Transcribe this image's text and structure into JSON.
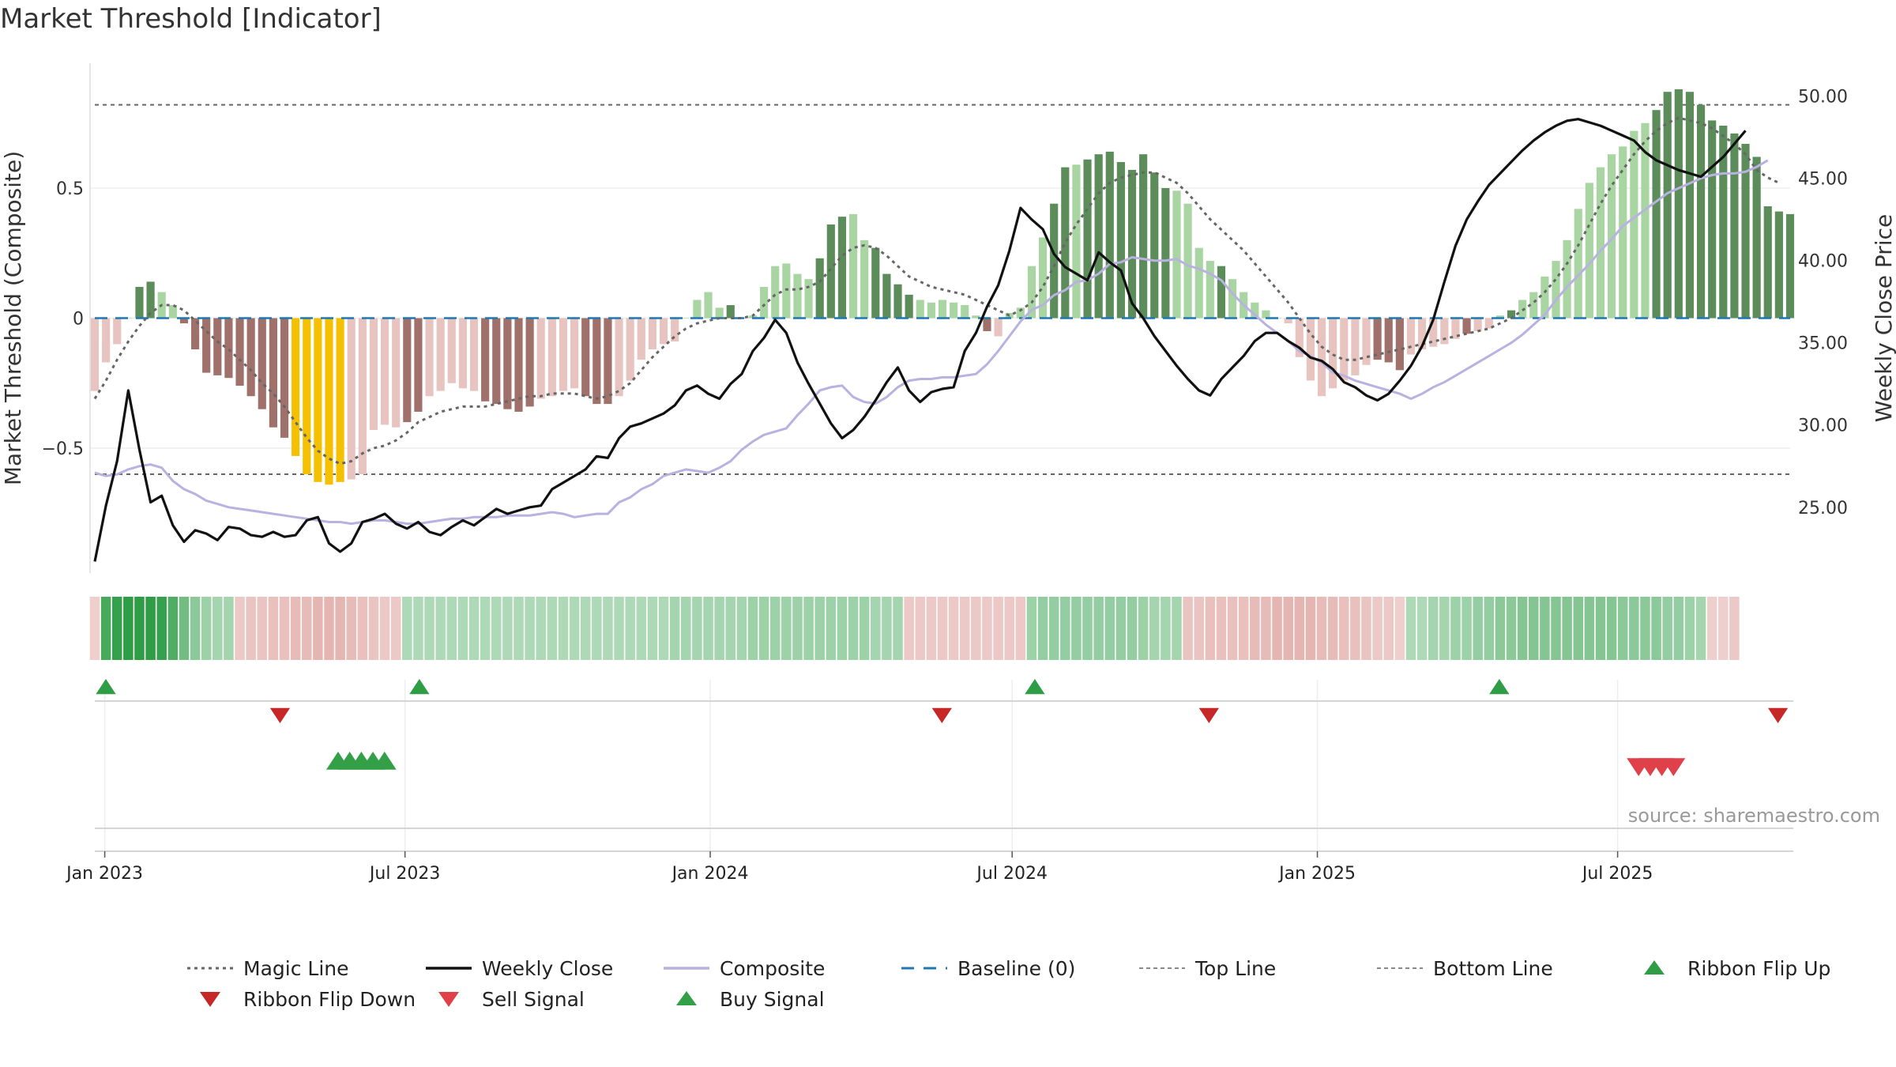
{
  "page_title": "Market Threshold [Indicator]",
  "source_note": "source: sharemaestro.com",
  "colors": {
    "bar_bull_strong": "#5b8c5a",
    "bar_bull_weak": "#a9d5a2",
    "bar_bear_strong": "#a0706b",
    "bar_bear_weak": "#e8c4c0",
    "bar_extreme": "#f5c000",
    "weekly_close": "#111111",
    "composite": "#b9b2e0",
    "magic_line": "#666666",
    "baseline": "#1f77b4",
    "threshold_lines": "#666666",
    "ribbon_flip_up": "#2e9d46",
    "ribbon_flip_down": "#c62828",
    "sell_signal": "#e0404a",
    "buy_signal": "#33a048"
  },
  "chart_data": {
    "type": "bar",
    "title": "Market Threshold [Indicator]",
    "x_axis": {
      "start": "2022-12-26",
      "end": "2025-10-13",
      "tick_labels": [
        "Jan 2023",
        "Jul 2023",
        "Jan 2024",
        "Jul 2024",
        "Jan 2025",
        "Jul 2025"
      ],
      "tick_dates": [
        "2023-01-01",
        "2023-07-01",
        "2024-01-01",
        "2024-07-01",
        "2025-01-01",
        "2025-07-01"
      ]
    },
    "y_left": {
      "label": "Market Threshold (Composite)",
      "range": [
        -0.98,
        0.98
      ],
      "ticks": [
        0.5,
        0,
        -0.5
      ],
      "tick_labels": [
        "0.5",
        "0",
        "−0.5"
      ]
    },
    "y_right": {
      "label": "Weekly Close Price",
      "range": [
        21.0,
        52.0
      ],
      "ticks": [
        50,
        45,
        40,
        35,
        30,
        25
      ],
      "tick_labels": [
        "50.00",
        "45.00",
        "40.00",
        "35.00",
        "30.00",
        "25.00"
      ]
    },
    "reference_lines": {
      "top_line": 0.82,
      "bottom_line": -0.6,
      "baseline": 0
    },
    "bar_categories": [
      "weak",
      "weak",
      "weak",
      "weak",
      "strong",
      "strong",
      "weak",
      "weak",
      "strong",
      "strong",
      "strong",
      "strong",
      "strong",
      "strong",
      "strong",
      "strong",
      "strong",
      "strong",
      "extreme",
      "extreme",
      "extreme",
      "extreme",
      "extreme",
      "weak",
      "weak",
      "weak",
      "weak",
      "weak",
      "strong",
      "strong",
      "weak",
      "weak",
      "weak",
      "weak",
      "weak",
      "strong",
      "strong",
      "strong",
      "strong",
      "strong",
      "weak",
      "weak",
      "weak",
      "weak",
      "strong",
      "strong",
      "strong",
      "weak",
      "weak",
      "weak",
      "weak",
      "weak",
      "weak",
      "weak",
      "weak",
      "weak",
      "weak",
      "strong",
      "weak",
      "weak",
      "weak",
      "weak",
      "weak",
      "weak",
      "weak",
      "strong",
      "strong",
      "strong",
      "weak",
      "weak",
      "strong",
      "strong",
      "strong",
      "strong",
      "weak",
      "weak",
      "weak",
      "weak",
      "weak",
      "weak",
      "strong",
      "weak",
      "weak",
      "weak",
      "weak",
      "weak",
      "strong",
      "strong",
      "weak",
      "strong",
      "strong",
      "strong",
      "strong",
      "strong",
      "strong",
      "strong",
      "strong",
      "weak",
      "weak",
      "weak",
      "weak",
      "strong",
      "weak",
      "weak",
      "weak",
      "weak",
      "weak",
      "weak",
      "weak",
      "weak",
      "weak",
      "weak",
      "weak",
      "weak",
      "weak",
      "strong",
      "strong",
      "strong",
      "weak",
      "weak",
      "weak",
      "weak",
      "weak",
      "strong",
      "weak",
      "weak",
      "weak",
      "strong",
      "weak",
      "weak",
      "weak",
      "weak",
      "weak",
      "weak",
      "weak",
      "weak",
      "weak",
      "weak",
      "weak",
      "weak",
      "strong",
      "strong",
      "strong",
      "strong",
      "strong",
      "strong",
      "strong",
      "strong",
      "strong",
      "strong",
      "strong",
      "strong",
      "strong",
      "strong",
      "extreme",
      "extreme",
      "extreme",
      "extreme",
      "weak",
      "weak",
      "weak",
      "weak",
      "weak",
      "weak",
      "weak",
      "weak",
      "weak",
      "strong"
    ],
    "composite_bars": [
      -0.28,
      -0.17,
      -0.1,
      0.0,
      0.12,
      0.14,
      0.1,
      0.05,
      -0.02,
      -0.12,
      -0.21,
      -0.22,
      -0.23,
      -0.26,
      -0.3,
      -0.35,
      -0.42,
      -0.46,
      -0.53,
      -0.6,
      -0.63,
      -0.64,
      -0.63,
      -0.62,
      -0.6,
      -0.43,
      -0.41,
      -0.42,
      -0.4,
      -0.36,
      -0.3,
      -0.28,
      -0.25,
      -0.27,
      -0.28,
      -0.32,
      -0.33,
      -0.35,
      -0.36,
      -0.34,
      -0.31,
      -0.3,
      -0.28,
      -0.27,
      -0.3,
      -0.33,
      -0.33,
      -0.3,
      -0.24,
      -0.16,
      -0.12,
      -0.1,
      -0.09,
      0.0,
      0.07,
      0.1,
      0.04,
      0.05,
      0.0,
      0.01,
      0.12,
      0.2,
      0.21,
      0.17,
      0.15,
      0.23,
      0.36,
      0.39,
      0.4,
      0.3,
      0.27,
      0.17,
      0.13,
      0.09,
      0.07,
      0.06,
      0.07,
      0.06,
      0.05,
      0.01,
      -0.05,
      -0.07,
      0.02,
      0.04,
      0.2,
      0.31,
      0.44,
      0.58,
      0.59,
      0.61,
      0.63,
      0.64,
      0.6,
      0.57,
      0.63,
      0.56,
      0.5,
      0.49,
      0.44,
      0.27,
      0.22,
      0.2,
      0.15,
      0.1,
      0.06,
      0.03,
      0.0,
      -0.02,
      -0.15,
      -0.24,
      -0.3,
      -0.27,
      -0.24,
      -0.22,
      -0.18,
      -0.16,
      -0.17,
      -0.2,
      -0.14,
      -0.12,
      -0.11,
      -0.1,
      -0.08,
      -0.06,
      -0.05,
      -0.04,
      0.01,
      0.03,
      0.07,
      0.1,
      0.16,
      0.22,
      0.3,
      0.42,
      0.52,
      0.58,
      0.63,
      0.66,
      0.72,
      0.75,
      0.8,
      0.87,
      0.88,
      0.87,
      0.82,
      0.76,
      0.74,
      0.71,
      0.67,
      0.62,
      0.43,
      0.41,
      0.4
    ],
    "series": [
      {
        "name": "Magic Line",
        "type": "line",
        "style": "dotted",
        "axis": "left",
        "values": [
          -0.31,
          -0.24,
          -0.16,
          -0.09,
          -0.03,
          0.02,
          0.05,
          0.05,
          0.03,
          -0.01,
          -0.05,
          -0.09,
          -0.12,
          -0.16,
          -0.2,
          -0.25,
          -0.29,
          -0.34,
          -0.4,
          -0.46,
          -0.51,
          -0.54,
          -0.56,
          -0.55,
          -0.52,
          -0.5,
          -0.49,
          -0.47,
          -0.44,
          -0.4,
          -0.38,
          -0.36,
          -0.35,
          -0.34,
          -0.34,
          -0.34,
          -0.33,
          -0.32,
          -0.31,
          -0.3,
          -0.3,
          -0.29,
          -0.29,
          -0.29,
          -0.3,
          -0.31,
          -0.3,
          -0.28,
          -0.25,
          -0.2,
          -0.15,
          -0.11,
          -0.07,
          -0.04,
          -0.02,
          -0.01,
          0.0,
          0.0,
          0.0,
          0.01,
          0.05,
          0.09,
          0.11,
          0.11,
          0.12,
          0.14,
          0.19,
          0.24,
          0.27,
          0.28,
          0.27,
          0.24,
          0.2,
          0.16,
          0.14,
          0.12,
          0.11,
          0.1,
          0.09,
          0.07,
          0.05,
          0.03,
          0.01,
          0.03,
          0.06,
          0.12,
          0.2,
          0.29,
          0.36,
          0.42,
          0.48,
          0.52,
          0.54,
          0.55,
          0.56,
          0.56,
          0.54,
          0.52,
          0.48,
          0.43,
          0.38,
          0.34,
          0.3,
          0.26,
          0.21,
          0.16,
          0.11,
          0.06,
          0.0,
          -0.06,
          -0.11,
          -0.14,
          -0.16,
          -0.16,
          -0.15,
          -0.14,
          -0.13,
          -0.12,
          -0.11,
          -0.1,
          -0.09,
          -0.08,
          -0.07,
          -0.06,
          -0.05,
          -0.04,
          -0.02,
          0.0,
          0.03,
          0.06,
          0.1,
          0.15,
          0.21,
          0.28,
          0.36,
          0.44,
          0.51,
          0.57,
          0.63,
          0.68,
          0.72,
          0.75,
          0.77,
          0.76,
          0.75,
          0.73,
          0.7,
          0.67,
          0.63,
          0.57,
          0.54,
          0.52
        ]
      },
      {
        "name": "Weekly Close",
        "type": "line",
        "style": "solid",
        "axis": "right",
        "values": [
          21.7,
          25.1,
          27.8,
          32.1,
          28.5,
          25.3,
          25.7,
          23.9,
          22.9,
          23.6,
          23.4,
          23.0,
          23.8,
          23.7,
          23.3,
          23.2,
          23.5,
          23.2,
          23.3,
          24.2,
          24.4,
          22.8,
          22.3,
          22.8,
          24.1,
          24.3,
          24.6,
          24.0,
          23.7,
          24.1,
          23.5,
          23.3,
          23.8,
          24.2,
          23.9,
          24.4,
          24.9,
          24.6,
          24.8,
          25.0,
          25.1,
          26.1,
          26.5,
          26.9,
          27.3,
          28.1,
          28.0,
          29.2,
          29.9,
          30.1,
          30.4,
          30.7,
          31.2,
          32.1,
          32.4,
          31.9,
          31.6,
          32.5,
          33.1,
          34.5,
          35.3,
          36.4,
          35.6,
          33.8,
          32.5,
          31.3,
          30.1,
          29.2,
          29.7,
          30.5,
          31.5,
          32.6,
          33.5,
          32.1,
          31.4,
          32.0,
          32.2,
          32.3,
          34.5,
          35.6,
          37.2,
          38.5,
          40.6,
          43.2,
          42.5,
          41.9,
          40.4,
          39.6,
          39.2,
          38.8,
          40.5,
          39.9,
          39.4,
          37.4,
          36.5,
          35.4,
          34.5,
          33.6,
          32.8,
          32.1,
          31.8,
          32.8,
          33.5,
          34.2,
          35.1,
          35.6,
          35.6,
          35.1,
          34.7,
          34.1,
          33.9,
          33.4,
          32.6,
          32.3,
          31.8,
          31.5,
          31.9,
          32.7,
          33.6,
          34.8,
          36.4,
          38.7,
          40.9,
          42.5,
          43.6,
          44.6,
          45.3,
          46.0,
          46.7,
          47.3,
          47.8,
          48.2,
          48.5,
          48.6,
          48.4,
          48.2,
          47.9,
          47.6,
          47.3,
          46.6,
          46.1,
          45.8,
          45.5,
          45.3,
          45.1,
          45.7,
          46.3,
          47.1,
          47.9
        ]
      },
      {
        "name": "Composite",
        "type": "line",
        "style": "solid",
        "axis": "right",
        "values": [
          27.1,
          26.9,
          27.0,
          27.3,
          27.5,
          27.6,
          27.4,
          26.6,
          26.1,
          25.8,
          25.4,
          25.2,
          25.0,
          24.9,
          24.8,
          24.7,
          24.6,
          24.5,
          24.4,
          24.3,
          24.2,
          24.1,
          24.1,
          24.0,
          24.1,
          24.2,
          24.2,
          24.1,
          24.0,
          24.0,
          24.1,
          24.2,
          24.3,
          24.3,
          24.4,
          24.4,
          24.4,
          24.5,
          24.5,
          24.5,
          24.6,
          24.7,
          24.6,
          24.4,
          24.5,
          24.6,
          24.6,
          25.3,
          25.6,
          26.1,
          26.4,
          26.9,
          27.1,
          27.3,
          27.2,
          27.1,
          27.4,
          27.8,
          28.5,
          29.0,
          29.4,
          29.6,
          29.8,
          30.6,
          31.3,
          32.1,
          32.3,
          32.4,
          31.7,
          31.4,
          31.3,
          31.7,
          32.3,
          32.7,
          32.8,
          32.8,
          32.9,
          32.9,
          33.0,
          33.1,
          33.7,
          34.5,
          35.4,
          36.3,
          37.0,
          37.3,
          37.9,
          38.2,
          38.7,
          38.8,
          39.2,
          39.8,
          39.9,
          40.2,
          40.1,
          40.0,
          40.0,
          40.1,
          39.7,
          39.5,
          39.2,
          38.8,
          38.0,
          37.3,
          36.7,
          36.1,
          35.6,
          35.1,
          34.5,
          34.2,
          33.8,
          33.2,
          33.0,
          32.7,
          32.5,
          32.3,
          32.1,
          31.9,
          31.6,
          31.9,
          32.3,
          32.6,
          33.0,
          33.4,
          33.8,
          34.2,
          34.6,
          35.0,
          35.5,
          36.1,
          36.7,
          37.6,
          38.4,
          39.1,
          39.8,
          40.6,
          41.3,
          42.1,
          42.6,
          43.1,
          43.6,
          44.1,
          44.4,
          44.7,
          45.0,
          45.2,
          45.3,
          45.3,
          45.4,
          45.7,
          46.1
        ]
      },
      {
        "name": "Baseline (0)",
        "type": "line",
        "style": "dashed",
        "axis": "left",
        "values": [
          0
        ]
      },
      {
        "name": "Top Line",
        "type": "line",
        "style": "dotted",
        "axis": "left",
        "values": [
          0.82
        ]
      },
      {
        "name": "Bottom Line",
        "type": "line",
        "style": "dotted",
        "axis": "left",
        "values": [
          -0.6
        ]
      }
    ],
    "ribbon": {
      "description_values": "signed strength per week, positive = green, negative = red",
      "values": [
        -0.2,
        0.85,
        0.95,
        1.0,
        1.0,
        1.0,
        0.95,
        0.8,
        0.6,
        0.45,
        0.35,
        0.3,
        0.3,
        -0.25,
        -0.3,
        -0.3,
        -0.35,
        -0.35,
        -0.4,
        -0.4,
        -0.45,
        -0.45,
        -0.45,
        -0.4,
        -0.35,
        -0.3,
        -0.25,
        -0.25,
        0.25,
        0.25,
        0.25,
        0.25,
        0.25,
        0.25,
        0.25,
        0.25,
        0.25,
        0.25,
        0.25,
        0.25,
        0.25,
        0.25,
        0.25,
        0.25,
        0.25,
        0.25,
        0.25,
        0.25,
        0.25,
        0.25,
        0.25,
        0.25,
        0.3,
        0.3,
        0.3,
        0.3,
        0.3,
        0.3,
        0.3,
        0.35,
        0.35,
        0.35,
        0.35,
        0.35,
        0.35,
        0.35,
        0.35,
        0.35,
        0.35,
        0.35,
        0.3,
        0.3,
        0.3,
        -0.25,
        -0.25,
        -0.25,
        -0.25,
        -0.25,
        -0.25,
        -0.25,
        -0.25,
        -0.25,
        -0.25,
        -0.25,
        0.35,
        0.4,
        0.4,
        0.4,
        0.4,
        0.4,
        0.4,
        0.4,
        0.4,
        0.4,
        0.35,
        0.3,
        0.3,
        0.3,
        -0.3,
        -0.3,
        -0.35,
        -0.35,
        -0.35,
        -0.35,
        -0.4,
        -0.4,
        -0.45,
        -0.45,
        -0.45,
        -0.45,
        -0.4,
        -0.4,
        -0.35,
        -0.35,
        -0.3,
        -0.25,
        -0.25,
        -0.2,
        0.25,
        0.25,
        0.3,
        0.3,
        0.35,
        0.35,
        0.4,
        0.4,
        0.45,
        0.45,
        0.5,
        0.5,
        0.5,
        0.5,
        0.5,
        0.5,
        0.5,
        0.5,
        0.5,
        0.45,
        0.45,
        0.45,
        0.45,
        0.4,
        0.4,
        0.35,
        0.3,
        -0.2,
        -0.2,
        -0.25
      ]
    },
    "signals": {
      "ribbon_flip_up": [
        "2022-12-26",
        "2023-07-03",
        "2024-07-08",
        "2025-04-14"
      ],
      "ribbon_flip_down": [
        "2023-04-10",
        "2024-05-13",
        "2024-10-21",
        "2025-09-29"
      ],
      "buy_signal": [
        "2023-05-15",
        "2023-05-22",
        "2023-05-29",
        "2023-06-05",
        "2023-06-12"
      ],
      "sell_signal": [
        "2025-07-07",
        "2025-07-14",
        "2025-07-21",
        "2025-07-28"
      ]
    },
    "legend": {
      "placement": "bottom",
      "entries": [
        {
          "label": "Magic Line",
          "kind": "dotted",
          "color": "#666666"
        },
        {
          "label": "Weekly Close",
          "kind": "solid",
          "color": "#111111"
        },
        {
          "label": "Composite",
          "kind": "solid",
          "color": "#b9b2e0"
        },
        {
          "label": "Baseline (0)",
          "kind": "dashed",
          "color": "#1f77b4"
        },
        {
          "label": "Top Line",
          "kind": "dotted-thin",
          "color": "#888888"
        },
        {
          "label": "Bottom Line",
          "kind": "dotted-thin",
          "color": "#888888"
        },
        {
          "label": "Ribbon Flip Up",
          "kind": "tri-up",
          "color": "#2e9d46"
        },
        {
          "label": "Ribbon Flip Down",
          "kind": "tri-down",
          "color": "#c62828"
        },
        {
          "label": "Sell Signal",
          "kind": "tri-down",
          "color": "#e0404a"
        },
        {
          "label": "Buy Signal",
          "kind": "tri-up",
          "color": "#33a048"
        }
      ]
    }
  }
}
